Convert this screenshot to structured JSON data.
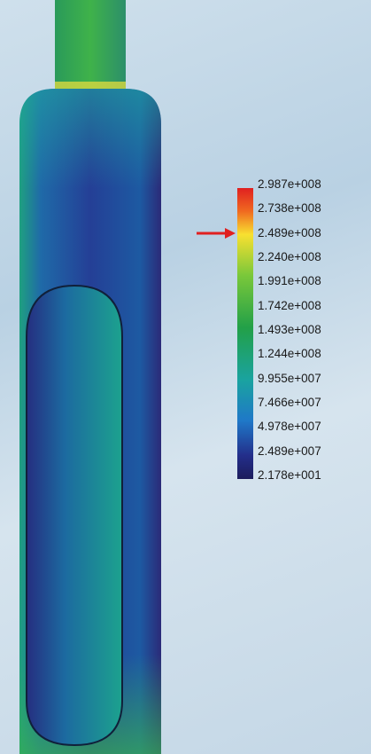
{
  "legend": {
    "labels": [
      "2.987e+008",
      "2.738e+008",
      "2.489e+008",
      "2.240e+008",
      "1.991e+008",
      "1.742e+008",
      "1.493e+008",
      "1.244e+008",
      "9.955e+007",
      "7.466e+007",
      "4.978e+007",
      "2.489e+007",
      "2.178e+001"
    ]
  }
}
